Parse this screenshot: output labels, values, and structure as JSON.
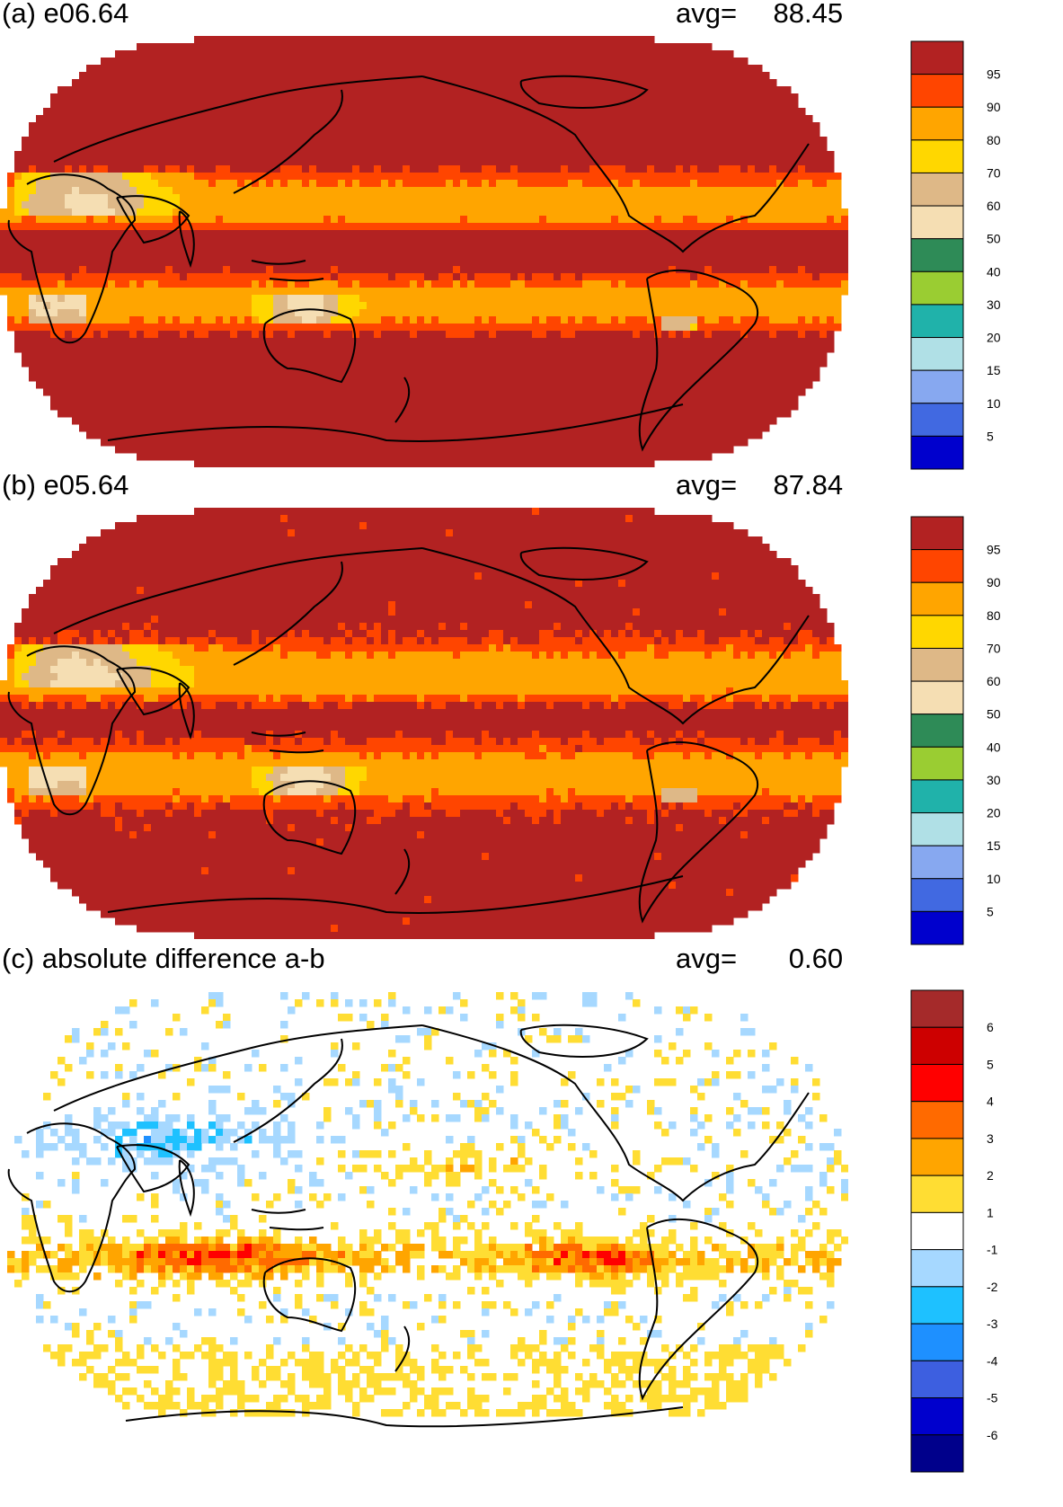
{
  "panels": [
    {
      "id": "a",
      "title": "(a) e06.64",
      "avg_label": "avg=",
      "avg_value": "88.45",
      "field": "a",
      "colorbar": {
        "colors": [
          "#b22222",
          "#ff4500",
          "#ffa500",
          "#ffd700",
          "#deb887",
          "#f5deb3",
          "#2e8b57",
          "#9acd32",
          "#20b2aa",
          "#b0e0e6",
          "#87a8f0",
          "#4169e1",
          "#0000cd"
        ],
        "labels": [
          "95",
          "90",
          "80",
          "70",
          "60",
          "50",
          "40",
          "30",
          "20",
          "15",
          "10",
          "5"
        ]
      }
    },
    {
      "id": "b",
      "title": "(b) e05.64",
      "avg_label": "avg=",
      "avg_value": "87.84",
      "field": "b",
      "colorbar": {
        "colors": [
          "#b22222",
          "#ff4500",
          "#ffa500",
          "#ffd700",
          "#deb887",
          "#f5deb3",
          "#2e8b57",
          "#9acd32",
          "#20b2aa",
          "#b0e0e6",
          "#87a8f0",
          "#4169e1",
          "#0000cd"
        ],
        "labels": [
          "95",
          "90",
          "80",
          "70",
          "60",
          "50",
          "40",
          "30",
          "20",
          "15",
          "10",
          "5"
        ]
      }
    },
    {
      "id": "c",
      "title": "(c) absolute difference a-b",
      "avg_label": "avg=",
      "avg_value": "0.60",
      "field": "diff",
      "colorbar": {
        "colors": [
          "#a52a2a",
          "#cd0000",
          "#ff0000",
          "#ff6a00",
          "#ffa500",
          "#ffdd33",
          "#ffffff",
          "#a6d8ff",
          "#1ec1ff",
          "#1e90ff",
          "#3d5fe0",
          "#0000cd",
          "#00008b"
        ],
        "labels": [
          "6",
          "5",
          "4",
          "3",
          "2",
          "1",
          "-1",
          "-2",
          "-3",
          "-4",
          "-5",
          "-6"
        ]
      }
    }
  ]
}
